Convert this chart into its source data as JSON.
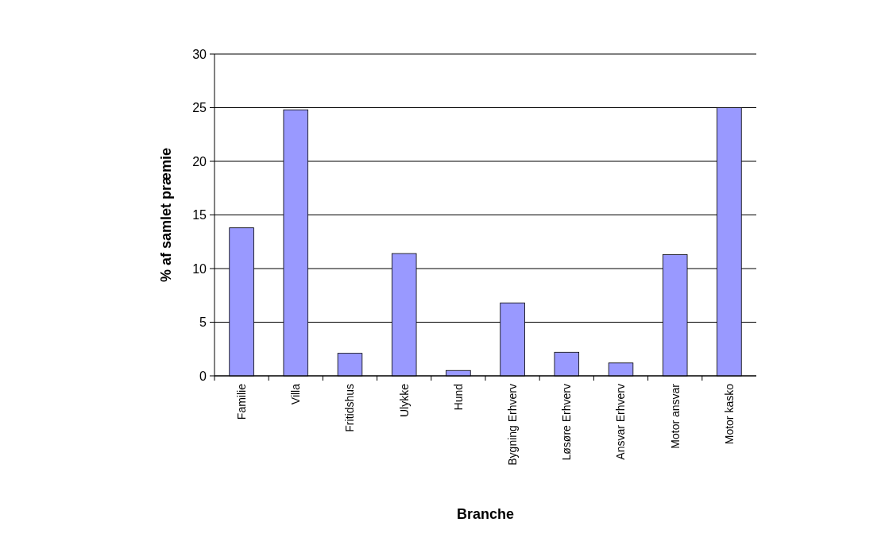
{
  "chart_data": {
    "type": "bar",
    "xlabel": "Branche",
    "ylabel": "% af samlet præmie",
    "categories": [
      "Familie",
      "Villa",
      "Fritidshus",
      "Ulykke",
      "Hund",
      "Bygning Erhverv",
      "Løsøre Erhverv",
      "Ansvar Erhverv",
      "Motor ansvar",
      "Motor kasko"
    ],
    "values": [
      13.8,
      24.8,
      2.1,
      11.4,
      0.5,
      6.8,
      2.2,
      1.2,
      11.3,
      25.0
    ],
    "color": "#9999ff",
    "ylim": [
      0,
      30
    ],
    "yticks": [
      0,
      5,
      10,
      15,
      20,
      25,
      30
    ],
    "grid": "y"
  }
}
